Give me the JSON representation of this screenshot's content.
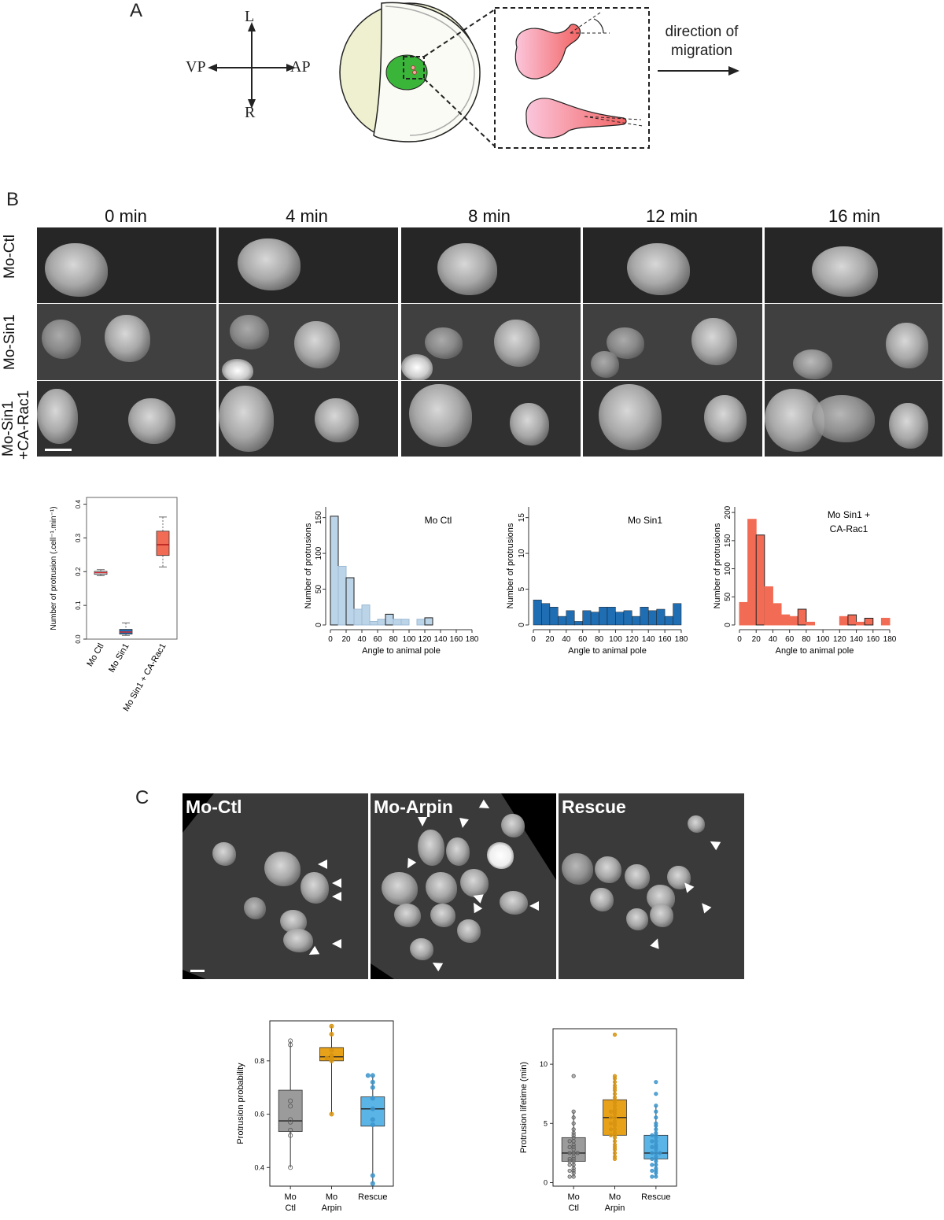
{
  "panel_letters": {
    "a": "A",
    "b": "B",
    "c": "C"
  },
  "panel_a": {
    "compass": {
      "top": "L",
      "bottom": "R",
      "left": "VP",
      "right": "AP"
    },
    "direction_label_line1": "direction of",
    "direction_label_line2": "migration"
  },
  "panel_b": {
    "timepoints": [
      "0 min",
      "4 min",
      "8 min",
      "12 min",
      "16 min"
    ],
    "rows": [
      "Mo-Ctl",
      "Mo-Sin1",
      "Mo-Sin1",
      "+CA-Rac1"
    ]
  },
  "panel_c": {
    "image_labels": [
      "Mo-Ctl",
      "Mo-Arpin",
      "Rescue"
    ]
  },
  "colors": {
    "ctl_light": "#bcd4e8",
    "sin1_blue": "#1f6db3",
    "rac1_red": "#f26c55",
    "gray_box": "#9b9b9b",
    "arpin_orange": "#e8a21a",
    "rescue_blue": "#5ab4e6",
    "cell_green": "#3ab53a"
  },
  "chart_data": [
    {
      "id": "b_box",
      "type": "box",
      "ylabel": "Number of protrusion (.cell⁻¹.min⁻¹)",
      "categories": [
        "Mo Ctl",
        "Mo Sin1",
        "Mo Sin1 + CA-Rac1"
      ],
      "yticks": [
        "0.0",
        "0.1",
        "0.2",
        "0.3",
        "0.4"
      ],
      "ylim": [
        0,
        0.42
      ],
      "boxes": [
        {
          "min": 0.188,
          "q1": 0.192,
          "median": 0.197,
          "q3": 0.201,
          "max": 0.206
        },
        {
          "min": 0.011,
          "q1": 0.015,
          "median": 0.021,
          "q3": 0.029,
          "max": 0.048
        },
        {
          "min": 0.214,
          "q1": 0.248,
          "median": 0.28,
          "q3": 0.32,
          "max": 0.362
        }
      ]
    },
    {
      "id": "hist_ctl",
      "type": "bar",
      "title": "Mo Ctl",
      "xlabel": "Angle to animal pole",
      "ylabel": "Number of protrusions",
      "bin_width": 10,
      "xticks": [
        "0",
        "20",
        "40",
        "60",
        "80",
        "100",
        "120",
        "140",
        "160",
        "180"
      ],
      "yticks": [
        "0",
        "50",
        "100",
        "150"
      ],
      "ylim": [
        0,
        165
      ],
      "values": [
        152,
        82,
        66,
        22,
        28,
        5,
        8,
        15,
        8,
        8,
        0,
        8,
        10,
        0,
        0,
        0,
        0,
        0
      ]
    },
    {
      "id": "hist_sin1",
      "type": "bar",
      "title": "Mo Sin1",
      "xlabel": "Angle to animal pole",
      "ylabel": "Number of protrusions",
      "bin_width": 10,
      "xticks": [
        "0",
        "20",
        "40",
        "60",
        "80",
        "100",
        "120",
        "140",
        "160",
        "180"
      ],
      "yticks": [
        "0",
        "5",
        "10",
        "15"
      ],
      "ylim": [
        0,
        16.5
      ],
      "values": [
        3.5,
        3,
        2.5,
        1.2,
        2,
        0.5,
        2,
        1.8,
        2.5,
        2.5,
        1.8,
        2,
        1.2,
        2.5,
        2,
        2.2,
        1.2,
        3
      ]
    },
    {
      "id": "hist_rac1",
      "type": "bar",
      "title": "Mo Sin1 +",
      "title2": "CA-Rac1",
      "xlabel": "Angle to animal pole",
      "ylabel": "Number of protrusions",
      "bin_width": 10,
      "xticks": [
        "0",
        "20",
        "40",
        "60",
        "80",
        "100",
        "120",
        "140",
        "160",
        "180"
      ],
      "yticks": [
        "0",
        "50",
        "100",
        "150",
        "200"
      ],
      "ylim": [
        0,
        210
      ],
      "values": [
        40,
        188,
        160,
        68,
        38,
        18,
        15,
        28,
        5,
        0,
        0,
        0,
        15,
        18,
        5,
        12,
        0,
        12
      ]
    },
    {
      "id": "c_prob",
      "type": "box",
      "ylabel": "Protrusion probability",
      "categories": [
        "Mo Ctl",
        "Mo Arpin",
        "Rescue"
      ],
      "cat_line1": [
        "Mo",
        "Mo",
        "Rescue"
      ],
      "cat_line2": [
        "Ctl",
        "Arpin",
        ""
      ],
      "yticks": [
        "0.4",
        "0.6",
        "0.8"
      ],
      "ylim": [
        0.33,
        0.95
      ],
      "boxes": [
        {
          "min": 0.4,
          "q1": 0.535,
          "median": 0.575,
          "q3": 0.69,
          "max": 0.875
        },
        {
          "min": 0.6,
          "q1": 0.8,
          "median": 0.815,
          "q3": 0.85,
          "max": 0.93
        },
        {
          "min": 0.34,
          "q1": 0.555,
          "median": 0.62,
          "q3": 0.665,
          "max": 0.745
        }
      ],
      "points": [
        [
          0.875,
          0.86,
          0.65,
          0.63,
          0.58,
          0.57,
          0.54,
          0.52,
          0.4
        ],
        [
          0.93,
          0.9,
          0.84,
          0.82,
          0.81,
          0.81,
          0.8,
          0.6
        ],
        [
          0.745,
          0.745,
          0.72,
          0.7,
          0.66,
          0.62,
          0.58,
          0.56,
          0.37,
          0.34
        ]
      ]
    },
    {
      "id": "c_life",
      "type": "box",
      "ylabel": "Protrusion lifetime (min)",
      "categories": [
        "Mo Ctl",
        "Mo Arpin",
        "Rescue"
      ],
      "cat_line1": [
        "Mo",
        "Mo",
        "Rescue"
      ],
      "cat_line2": [
        "Ctl",
        "Arpin",
        ""
      ],
      "yticks": [
        "0",
        "5",
        "10"
      ],
      "ylim": [
        -0.3,
        13
      ],
      "boxes": [
        {
          "min": 0.5,
          "q1": 1.8,
          "median": 2.5,
          "q3": 3.8,
          "max": 6.0
        },
        {
          "min": 2.0,
          "q1": 4.0,
          "median": 5.5,
          "q3": 7.0,
          "max": 9.0
        },
        {
          "min": 0.5,
          "q1": 2.0,
          "median": 2.5,
          "q3": 4.0,
          "max": 6.5
        }
      ],
      "points": [
        [
          9.0,
          6.0,
          5.5,
          5.0,
          4.5,
          4.2,
          4.0,
          3.8,
          3.5,
          3.5,
          3.2,
          3.0,
          3.0,
          2.8,
          2.5,
          2.5,
          2.5,
          2.2,
          2.0,
          2.0,
          1.8,
          1.8,
          1.5,
          1.5,
          1.2,
          1.0,
          1.0,
          0.8,
          0.5,
          0.5
        ],
        [
          12.5,
          9.0,
          8.8,
          8.5,
          8.2,
          8.0,
          7.8,
          7.5,
          7.2,
          7.0,
          6.8,
          6.5,
          6.2,
          6.0,
          6.0,
          5.8,
          5.5,
          5.5,
          5.2,
          5.0,
          5.0,
          4.8,
          4.5,
          4.5,
          4.2,
          4.0,
          4.0,
          3.8,
          3.5,
          3.2,
          3.0,
          2.8,
          2.5,
          2.2,
          2.0
        ],
        [
          8.5,
          7.5,
          6.5,
          6.0,
          5.5,
          5.0,
          4.8,
          4.5,
          4.2,
          4.0,
          4.0,
          3.8,
          3.5,
          3.5,
          3.2,
          3.0,
          3.0,
          2.8,
          2.5,
          2.5,
          2.5,
          2.2,
          2.0,
          2.0,
          1.8,
          1.5,
          1.5,
          1.2,
          1.0,
          1.0,
          0.8,
          0.5,
          0.5
        ]
      ]
    }
  ]
}
